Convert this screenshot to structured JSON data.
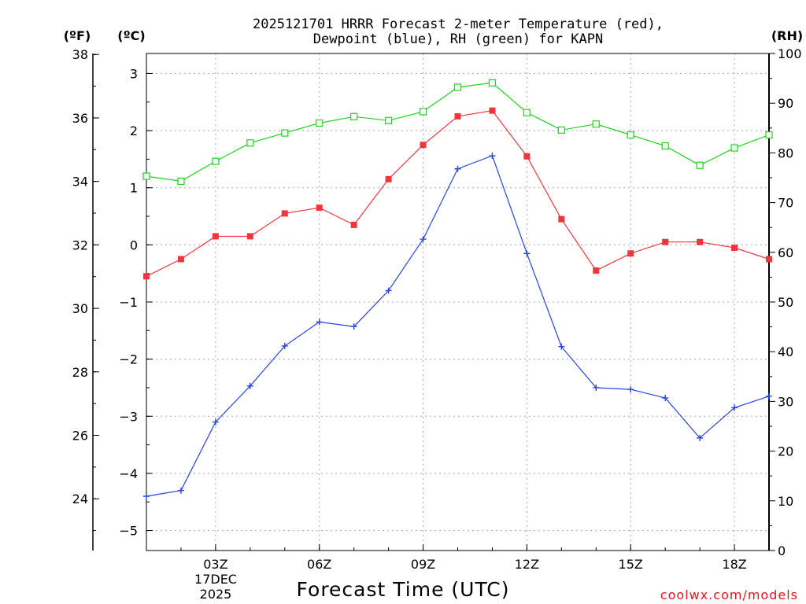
{
  "chart_data": {
    "type": "line",
    "title_line1": "2025121701 HRRR Forecast 2-meter Temperature (red),",
    "title_line2": "Dewpoint (blue), RH (green) for KAPN",
    "xlabel": "Forecast Time (UTC)",
    "credit": "coolwx.com/models",
    "units": {
      "fahrenheit": "(ºF)",
      "celsius": "(ºC)",
      "rh": "(RH)"
    },
    "x_hours": [
      1,
      2,
      3,
      4,
      5,
      6,
      7,
      8,
      9,
      10,
      11,
      12,
      13,
      14,
      15,
      16,
      17,
      18,
      19
    ],
    "xlim": [
      1,
      19
    ],
    "x_ticks": [
      {
        "hour": 3,
        "label": "03Z"
      },
      {
        "hour": 6,
        "label": "06Z"
      },
      {
        "hour": 9,
        "label": "09Z"
      },
      {
        "hour": 12,
        "label": "12Z"
      },
      {
        "hour": 15,
        "label": "15Z"
      },
      {
        "hour": 18,
        "label": "18Z"
      }
    ],
    "date_line1": "17DEC",
    "date_line2": "2025",
    "ylim_c": [
      -5.35,
      3.35
    ],
    "y_ticks_c": [
      "3",
      "2",
      "1",
      "0",
      "−1",
      "−2",
      "−3",
      "−4",
      "−5"
    ],
    "y_ticks_f": [
      "38",
      "36",
      "34",
      "32",
      "30",
      "28",
      "26",
      "24"
    ],
    "y_ticks_rh": [
      "100",
      "90",
      "80",
      "70",
      "60",
      "50",
      "40",
      "30",
      "20",
      "10",
      "0"
    ],
    "series": [
      {
        "name": "Temperature",
        "color": "#f0363c",
        "marker": "filled-square",
        "values_c": [
          -0.55,
          -0.25,
          0.15,
          0.15,
          0.55,
          0.65,
          0.35,
          1.15,
          1.75,
          2.25,
          2.35,
          1.55,
          0.45,
          -0.45,
          -0.15,
          0.05,
          0.05,
          -0.05,
          -0.25
        ]
      },
      {
        "name": "Dewpoint",
        "color": "#2743e8",
        "marker": "plus",
        "values_c": [
          -4.4,
          -4.3,
          -3.1,
          -2.47,
          -1.77,
          -1.35,
          -1.43,
          -0.8,
          0.1,
          1.33,
          1.56,
          -0.15,
          -1.78,
          -2.5,
          -2.53,
          -2.68,
          -3.38,
          -2.85,
          -2.65
        ]
      },
      {
        "name": "RH",
        "color": "#1ad61a",
        "marker": "open-square",
        "values_pct": [
          75.3,
          74.3,
          78.3,
          82.0,
          84.0,
          86.0,
          87.3,
          86.5,
          88.3,
          93.2,
          94.1,
          88.1,
          84.6,
          85.8,
          83.6,
          81.4,
          77.5,
          81.0,
          83.6
        ]
      }
    ]
  }
}
